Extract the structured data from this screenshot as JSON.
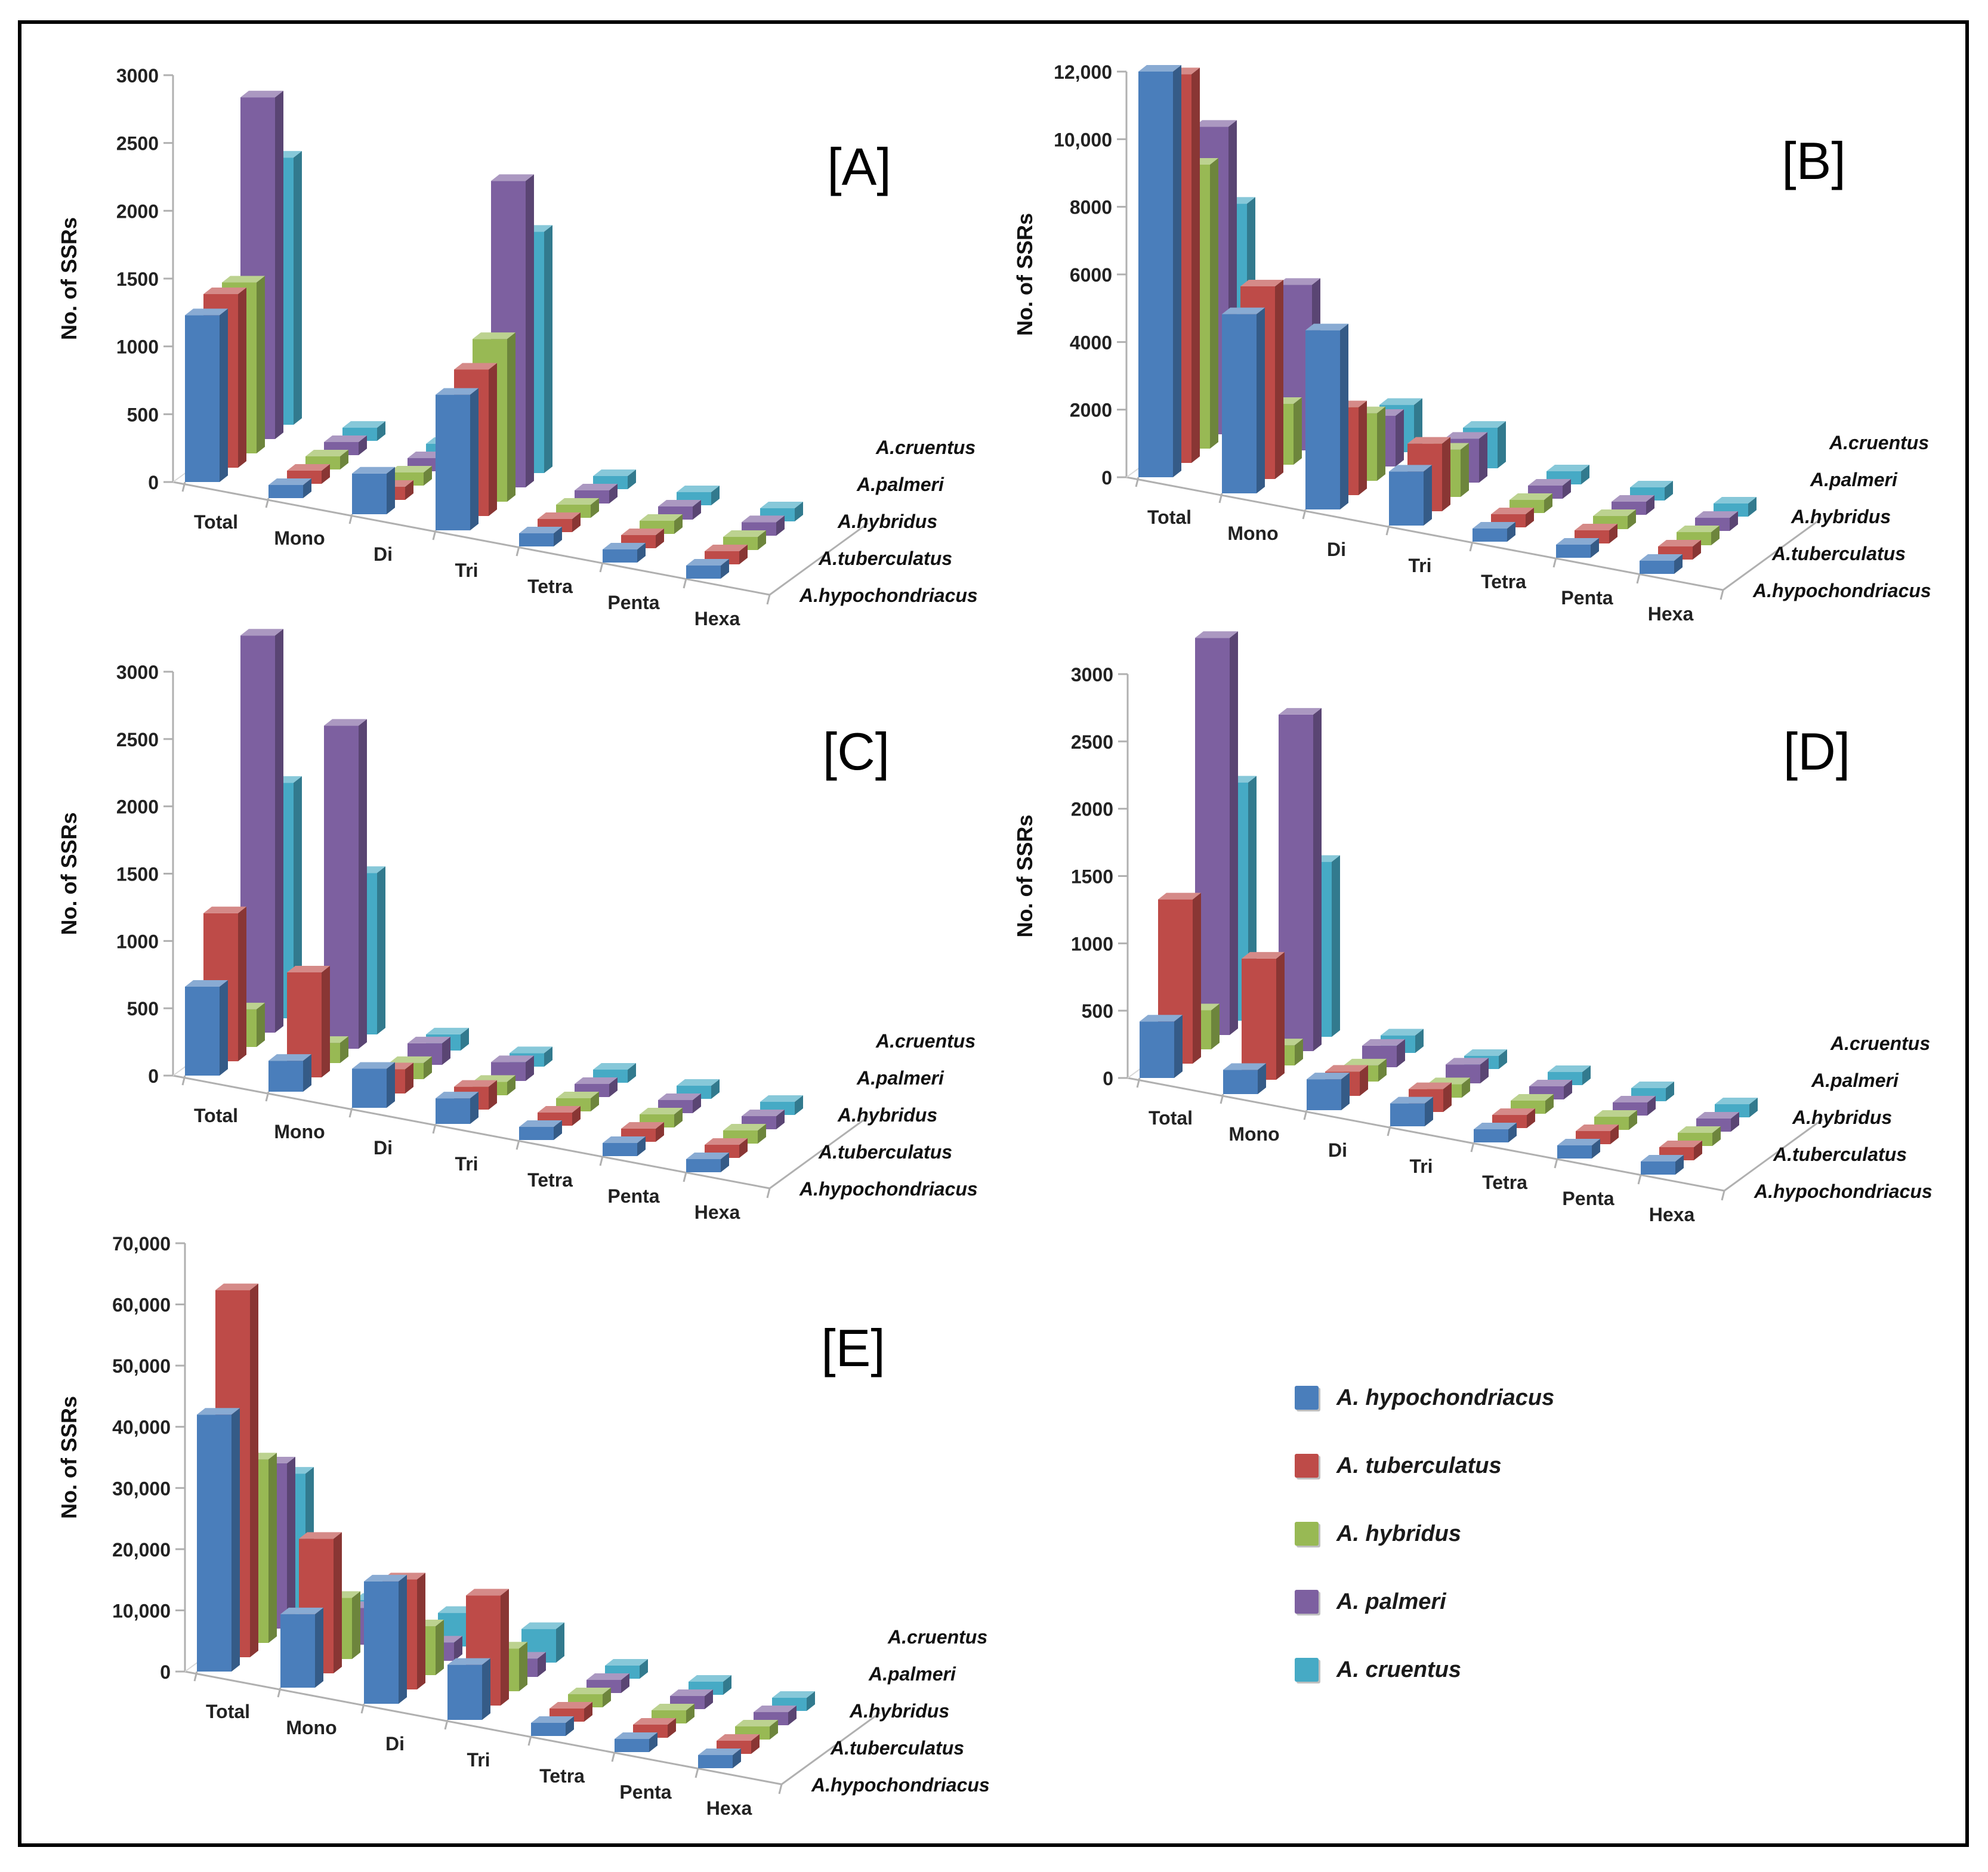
{
  "ylabel": "No. of SSRs",
  "legend": [
    {
      "label": "A. hypochondriacus",
      "color": "#4a7ebb"
    },
    {
      "label": "A. tuberculatus",
      "color": "#be4b48"
    },
    {
      "label": "A. hybridus",
      "color": "#98b954"
    },
    {
      "label": "A. palmeri",
      "color": "#7d60a0"
    },
    {
      "label": "A. cruentus",
      "color": "#46aac5"
    }
  ],
  "chart_data": [
    {
      "type": "bar",
      "title": "[A]",
      "ylabel": "No. of SSRs",
      "ylim": [
        0,
        3000
      ],
      "yticks": [
        "0",
        "500",
        "1000",
        "1500",
        "2000",
        "2500",
        "3000"
      ],
      "categories": [
        "Total",
        "Mono",
        "Di",
        "Tri",
        "Tetra",
        "Penta",
        "Hexa"
      ],
      "series": [
        {
          "name": "A.hypochondriacus",
          "values": [
            1230,
            10,
            300,
            1000,
            20,
            10,
            80
          ]
        },
        {
          "name": "A.tuberculatus",
          "values": [
            1280,
            90,
            90,
            1080,
            20,
            20,
            90
          ]
        },
        {
          "name": "A.hybridus",
          "values": [
            1260,
            20,
            30,
            1200,
            20,
            30,
            80
          ]
        },
        {
          "name": "A.palmeri",
          "values": [
            2520,
            90,
            10,
            2260,
            20,
            30,
            100
          ]
        },
        {
          "name": "A.cruentus",
          "values": [
            1970,
            40,
            40,
            1780,
            20,
            30,
            90
          ]
        }
      ]
    },
    {
      "type": "bar",
      "title": "[B]",
      "ylabel": "No. of SSRs",
      "ylim": [
        0,
        12000
      ],
      "yticks": [
        "0",
        "2000",
        "4000",
        "6000",
        "8000",
        "10,000",
        "12,000"
      ],
      "categories": [
        "Total",
        "Mono",
        "Di",
        "Tri",
        "Tetra",
        "Penta",
        "Hexa"
      ],
      "series": [
        {
          "name": "A.hypochondriacus",
          "values": [
            12000,
            5300,
            5300,
            1600,
            220,
            200,
            220
          ]
        },
        {
          "name": "A.tuberculatus",
          "values": [
            11500,
            5700,
            2600,
            2000,
            200,
            200,
            220
          ]
        },
        {
          "name": "A.hybridus",
          "values": [
            8400,
            1800,
            2000,
            1400,
            200,
            200,
            220
          ]
        },
        {
          "name": "A.palmeri",
          "values": [
            9100,
            4900,
            1500,
            1300,
            200,
            200,
            220
          ]
        },
        {
          "name": "A.cruentus",
          "values": [
            6400,
            2300,
            1400,
            1200,
            200,
            200,
            220
          ]
        }
      ]
    },
    {
      "type": "bar",
      "title": "[C]",
      "ylabel": "No. of SSRs",
      "ylim": [
        0,
        3000
      ],
      "yticks": [
        "0",
        "500",
        "1000",
        "1500",
        "2000",
        "2500",
        "3000"
      ],
      "categories": [
        "Total",
        "Mono",
        "Di",
        "Tri",
        "Tetra",
        "Penta",
        "Hexa"
      ],
      "series": [
        {
          "name": "A.hypochondriacus",
          "values": [
            660,
            230,
            290,
            190,
            40,
            40,
            50
          ]
        },
        {
          "name": "A.tuberculatus",
          "values": [
            1100,
            780,
            180,
            170,
            40,
            40,
            50
          ]
        },
        {
          "name": "A.hybridus",
          "values": [
            280,
            150,
            120,
            100,
            40,
            40,
            50
          ]
        },
        {
          "name": "A.palmeri",
          "values": [
            2950,
            2400,
            160,
            140,
            80,
            80,
            80
          ]
        },
        {
          "name": "A.cruentus",
          "values": [
            1750,
            1200,
            120,
            100,
            80,
            60,
            80
          ]
        }
      ]
    },
    {
      "type": "bar",
      "title": "[D]",
      "ylabel": "No. of SSRs",
      "ylim": [
        0,
        3000
      ],
      "yticks": [
        "0",
        "500",
        "1000",
        "1500",
        "2000",
        "2500",
        "3000"
      ],
      "categories": [
        "Total",
        "Mono",
        "Di",
        "Tri",
        "Tetra",
        "Penta",
        "Hexa"
      ],
      "series": [
        {
          "name": "A.hypochondriacus",
          "values": [
            420,
            180,
            230,
            170,
            40,
            40,
            50
          ]
        },
        {
          "name": "A.tuberculatus",
          "values": [
            1220,
            900,
            180,
            170,
            40,
            40,
            50
          ]
        },
        {
          "name": "A.hybridus",
          "values": [
            290,
            150,
            120,
            100,
            40,
            40,
            50
          ]
        },
        {
          "name": "A.palmeri",
          "values": [
            2950,
            2500,
            160,
            140,
            80,
            80,
            80
          ]
        },
        {
          "name": "A.cruentus",
          "values": [
            1770,
            1300,
            130,
            80,
            80,
            60,
            80
          ]
        }
      ]
    },
    {
      "type": "bar",
      "title": "[E]",
      "ylabel": "No. of SSRs",
      "ylim": [
        0,
        70000
      ],
      "yticks": [
        "0",
        "10,000",
        "20,000",
        "30,000",
        "40,000",
        "50,000",
        "60,000",
        "70,000"
      ],
      "categories": [
        "Total",
        "Mono",
        "Di",
        "Tri",
        "Tetra",
        "Penta",
        "Hexa"
      ],
      "series": [
        {
          "name": "A.hypochondriacus",
          "values": [
            42000,
            12000,
            20000,
            9000,
            1500,
            1500,
            1500
          ]
        },
        {
          "name": "A.tuberculatus",
          "values": [
            60000,
            22000,
            18000,
            18000,
            1500,
            1500,
            1500
          ]
        },
        {
          "name": "A.hybridus",
          "values": [
            30000,
            10000,
            8000,
            7000,
            1500,
            1500,
            1500
          ]
        },
        {
          "name": "A.palmeri",
          "values": [
            27000,
            6000,
            3000,
            3000,
            1500,
            1500,
            1500
          ]
        },
        {
          "name": "A.cruentus",
          "values": [
            23000,
            5000,
            5500,
            5500,
            1500,
            1500,
            1500
          ]
        }
      ]
    }
  ]
}
